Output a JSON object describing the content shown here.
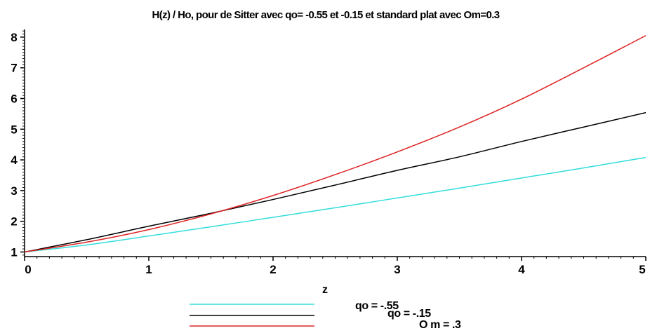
{
  "chart_data": {
    "type": "line",
    "title": "H(z) / Ho, pour de Sitter avec qo= -0.55 et -0.15 et standard plat avec Om=0.3",
    "xlabel": "z",
    "ylabel": "",
    "xlim": [
      0,
      5
    ],
    "ylim": [
      0.85,
      8.25
    ],
    "xticks": [
      "0",
      "1",
      "2",
      "3",
      "4",
      "5"
    ],
    "yticks": [
      "1",
      "2",
      "3",
      "4",
      "5",
      "6",
      "7",
      "8"
    ],
    "grid": false,
    "legend_position": "bottom",
    "x": [
      0,
      0.5,
      1,
      1.5,
      2,
      2.5,
      3,
      3.5,
      4,
      4.5,
      5
    ],
    "series": [
      {
        "name": "qo = -.55",
        "color": "#33dddd",
        "values": [
          1.0,
          1.23,
          1.52,
          1.82,
          2.13,
          2.44,
          2.76,
          3.08,
          3.41,
          3.74,
          4.08
        ]
      },
      {
        "name": "qo = -.15",
        "color": "#000000",
        "values": [
          1.0,
          1.4,
          1.84,
          2.26,
          2.71,
          3.18,
          3.66,
          4.1,
          4.6,
          5.07,
          5.54
        ]
      },
      {
        "name": "O m = .3",
        "color": "#dd2222",
        "values": [
          1.0,
          1.32,
          1.73,
          2.24,
          2.84,
          3.52,
          4.26,
          5.07,
          5.98,
          7.0,
          8.05
        ]
      }
    ]
  }
}
